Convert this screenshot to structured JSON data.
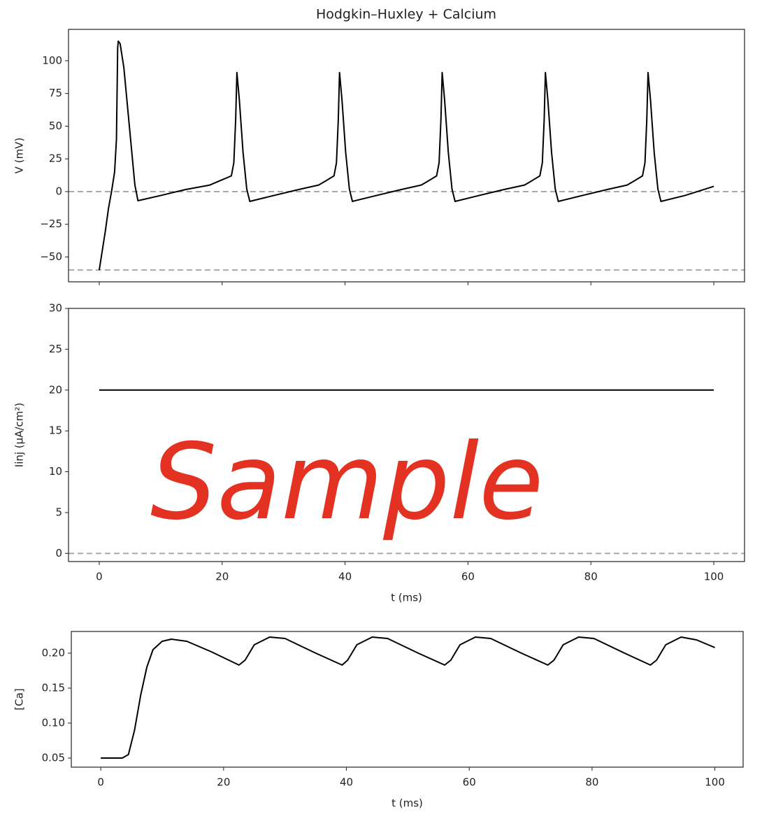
{
  "chart_data": [
    {
      "type": "line",
      "title": "Hodgkin–Huxley + Calcium",
      "y_label": "V (mV)",
      "xlim": [
        -5,
        105
      ],
      "xticks": [
        0,
        20,
        40,
        60,
        80,
        100
      ],
      "xtick_labels": false,
      "ylim": [
        -69,
        124
      ],
      "yticks": [
        {
          "value": -50,
          "label": "−50"
        },
        {
          "value": -25,
          "label": "−25"
        },
        0,
        25,
        50,
        75,
        100
      ],
      "hlines": [
        0,
        -60
      ],
      "hline_color": "#a9a9a9",
      "series": [
        {
          "name": "V",
          "color": "#000000",
          "x": [
            0,
            0.5,
            1,
            1.5,
            2,
            2.5,
            2.8,
            3,
            3.1,
            3.4,
            4,
            5,
            5.8,
            6.3,
            10,
            14,
            18,
            19.5,
            21.5,
            21.9,
            22.2,
            22.4,
            22.8,
            23.4,
            24,
            24.5,
            28.4,
            32.4,
            35.7,
            36.8,
            38.2,
            38.6,
            38.9,
            39.1,
            39.5,
            40.1,
            40.7,
            41.2,
            45.1,
            49.1,
            52.4,
            53.5,
            54.9,
            55.3,
            55.6,
            55.8,
            56.2,
            56.8,
            57.4,
            57.9,
            61.8,
            65.8,
            69.2,
            70.3,
            71.7,
            72.1,
            72.4,
            72.6,
            73,
            73.6,
            74.2,
            74.7,
            78.6,
            82.6,
            85.9,
            87,
            88.4,
            88.8,
            89.1,
            89.3,
            89.7,
            90.3,
            90.9,
            91.4,
            95.3,
            98,
            100
          ],
          "values": [
            -60,
            -45,
            -30,
            -13,
            0,
            15,
            40,
            110,
            115,
            113,
            95,
            45,
            5,
            -7,
            -3,
            1.5,
            5,
            8,
            12,
            22,
            55,
            91,
            70,
            30,
            2,
            -7.5,
            -3,
            1.5,
            5,
            8,
            12,
            22,
            55,
            91,
            70,
            30,
            2,
            -7.5,
            -3,
            1.5,
            5,
            8,
            12,
            22,
            55,
            91,
            70,
            30,
            2,
            -7.5,
            -3,
            1.5,
            5,
            8,
            12,
            22,
            55,
            91,
            70,
            30,
            2,
            -7.5,
            -3,
            1.5,
            5,
            8,
            12,
            22,
            55,
            91,
            70,
            30,
            2,
            -7.5,
            -3,
            1,
            4
          ]
        }
      ]
    },
    {
      "type": "line",
      "y_label": "Iinj (μA/cm²)",
      "x_label": "t (ms)",
      "annotation": "Sample",
      "xlim": [
        -5,
        105
      ],
      "xticks": [
        0,
        20,
        40,
        60,
        80,
        100
      ],
      "xtick_labels": true,
      "ylim": [
        -1,
        30
      ],
      "yticks": [
        0,
        5,
        10,
        15,
        20,
        25,
        30
      ],
      "hlines": [
        0
      ],
      "hline_color": "#a9a9a9",
      "series": [
        {
          "name": "I",
          "color": "#000000",
          "x": [
            0,
            100
          ],
          "values": [
            20,
            20
          ]
        }
      ]
    },
    {
      "type": "line",
      "y_label": "[Ca]",
      "x_label": "t (ms)",
      "xlim": [
        -4.8,
        104.6
      ],
      "xticks": [
        0,
        20,
        40,
        60,
        80,
        100
      ],
      "xtick_labels": true,
      "ylim": [
        0.037,
        0.231
      ],
      "yticks": [
        0.05,
        {
          "value": 0.1,
          "label": "0.10"
        },
        0.15,
        {
          "value": 0.2,
          "label": "0.20"
        }
      ],
      "series": [
        {
          "name": "Ca",
          "color": "#000000",
          "x": [
            0,
            3.5,
            4.5,
            5.5,
            6.5,
            7.5,
            8.5,
            10,
            11.5,
            14,
            18,
            22.5,
            23.5,
            25,
            27.5,
            30,
            35,
            39.3,
            40.2,
            41.7,
            44.2,
            46.7,
            51.7,
            56,
            57,
            58.5,
            61,
            63.5,
            68.5,
            72.8,
            73.8,
            75.3,
            77.8,
            80.3,
            85.3,
            89.5,
            90.5,
            92,
            94.5,
            97,
            100
          ],
          "values": [
            0.05,
            0.05,
            0.055,
            0.09,
            0.14,
            0.18,
            0.205,
            0.217,
            0.22,
            0.217,
            0.202,
            0.183,
            0.19,
            0.212,
            0.223,
            0.221,
            0.2,
            0.183,
            0.19,
            0.212,
            0.223,
            0.221,
            0.2,
            0.183,
            0.19,
            0.212,
            0.223,
            0.221,
            0.2,
            0.183,
            0.19,
            0.212,
            0.223,
            0.221,
            0.2,
            0.183,
            0.19,
            0.212,
            0.223,
            0.219,
            0.208
          ]
        }
      ]
    }
  ]
}
